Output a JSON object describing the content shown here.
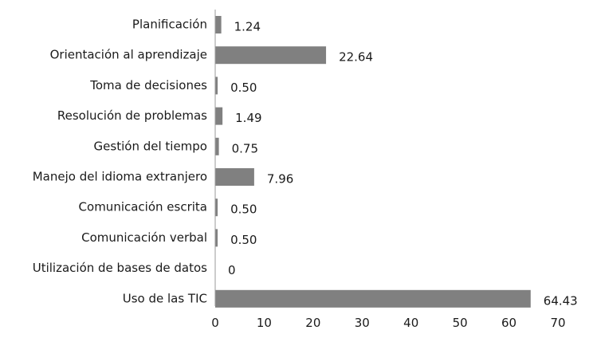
{
  "chart_data": {
    "type": "bar",
    "orientation": "horizontal",
    "categories": [
      "Planificación",
      "Orientación al aprendizaje",
      "Toma de decisiones",
      "Resolución de problemas",
      "Gestión del tiempo",
      "Manejo del idioma extranjero",
      "Comunicación escrita",
      "Comunicación verbal",
      "Utilización de bases de datos",
      "Uso de las TIC"
    ],
    "values": [
      1.24,
      22.64,
      0.5,
      1.49,
      0.75,
      7.96,
      0.5,
      0.5,
      0,
      64.43
    ],
    "value_labels": [
      "1.24",
      "22.64",
      "0.50",
      "1.49",
      "0.75",
      "7.96",
      "0.50",
      "0.50",
      "0",
      "64.43"
    ],
    "xlim": [
      0,
      70
    ],
    "xticks": [
      0,
      10,
      20,
      30,
      40,
      50,
      60,
      70
    ],
    "title": "",
    "xlabel": "",
    "ylabel": "",
    "grid": false,
    "legend": false,
    "bar_color": "#808080"
  }
}
